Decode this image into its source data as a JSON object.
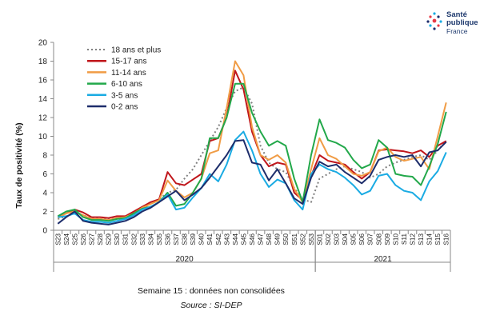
{
  "logo": {
    "line1": "Santé",
    "line2": "publique",
    "line3": "France"
  },
  "footnote": "Semaine 15 : données non consolidées",
  "source": "Source : SI-DEP",
  "chart_data": {
    "type": "line",
    "ylabel": "Taux de positivité  (%)",
    "ylim": [
      0,
      20
    ],
    "yticks": [
      0,
      2,
      4,
      6,
      8,
      10,
      12,
      14,
      16,
      18,
      20
    ],
    "grid": false,
    "legend_position": "top-left",
    "categories": [
      "S23",
      "S24",
      "S25",
      "S26",
      "S27",
      "S28",
      "S29",
      "S30",
      "S31",
      "S32",
      "S33",
      "S34",
      "S35",
      "S36",
      "S37",
      "S38",
      "S39",
      "S40",
      "S41",
      "S42",
      "S43",
      "S44",
      "S45",
      "S46",
      "S47",
      "S48",
      "S49",
      "S50",
      "S51",
      "S52",
      "S53",
      "S01",
      "S02",
      "S03",
      "S04",
      "S05",
      "S06",
      "S07",
      "S08",
      "S09",
      "S10",
      "S11",
      "S12",
      "S13",
      "S14",
      "S15",
      "S16"
    ],
    "year_groups": [
      {
        "label": "2020",
        "start": 0,
        "end": 30
      },
      {
        "label": "2021",
        "start": 31,
        "end": 46
      }
    ],
    "series": [
      {
        "name": "18 ans et plus",
        "color": "#808080",
        "dash": true,
        "values": [
          1.2,
          1.5,
          1.8,
          1.6,
          1.3,
          1.2,
          1.2,
          1.3,
          1.5,
          1.9,
          2.3,
          2.8,
          3.3,
          4.0,
          4.3,
          5.5,
          6.5,
          8.0,
          9.5,
          11.0,
          13.0,
          14.8,
          15.2,
          13.5,
          9.0,
          7.2,
          6.5,
          6.2,
          4.5,
          3.3,
          3.0,
          5.5,
          6.0,
          6.5,
          6.8,
          6.5,
          6.2,
          5.6,
          6.0,
          6.8,
          7.2,
          7.5,
          7.8,
          8.0,
          7.5,
          8.5,
          9.5
        ]
      },
      {
        "name": "15-17 ans",
        "color": "#c0161b",
        "dash": false,
        "values": [
          1.4,
          1.8,
          2.2,
          1.9,
          1.4,
          1.4,
          1.3,
          1.5,
          1.5,
          2.0,
          2.5,
          3.0,
          3.3,
          6.2,
          5.0,
          4.8,
          5.4,
          6.0,
          9.5,
          9.8,
          12.0,
          17.0,
          15.0,
          10.5,
          8.0,
          6.8,
          7.2,
          7.0,
          4.0,
          3.2,
          5.8,
          8.0,
          7.4,
          7.2,
          7.0,
          6.2,
          5.5,
          6.2,
          8.5,
          8.6,
          8.5,
          8.4,
          8.2,
          8.5,
          7.8,
          9.0,
          9.5
        ]
      },
      {
        "name": "11-14 ans",
        "color": "#f09c45",
        "dash": false,
        "values": [
          1.3,
          1.8,
          2.0,
          1.6,
          1.2,
          1.2,
          1.1,
          1.3,
          1.4,
          1.8,
          2.4,
          2.8,
          3.2,
          5.3,
          4.2,
          3.5,
          4.0,
          5.5,
          8.2,
          8.5,
          13.0,
          18.0,
          16.5,
          11.0,
          8.0,
          7.5,
          8.0,
          7.2,
          4.4,
          3.0,
          6.5,
          9.8,
          8.0,
          7.6,
          6.8,
          6.0,
          5.8,
          6.2,
          8.4,
          8.8,
          7.8,
          7.4,
          7.6,
          7.8,
          6.5,
          10.0,
          13.6
        ]
      },
      {
        "name": "6-10 ans",
        "color": "#22a84a",
        "dash": false,
        "values": [
          1.5,
          2.0,
          2.2,
          1.4,
          1.1,
          1.1,
          1.0,
          1.2,
          1.3,
          1.8,
          2.3,
          2.5,
          3.0,
          4.0,
          2.6,
          2.8,
          4.0,
          5.5,
          9.8,
          9.8,
          12.0,
          15.6,
          15.6,
          12.5,
          10.5,
          9.0,
          9.5,
          9.0,
          5.5,
          3.0,
          8.0,
          11.8,
          9.6,
          9.3,
          8.8,
          7.5,
          6.6,
          7.0,
          9.6,
          8.8,
          6.0,
          5.8,
          5.7,
          4.8,
          6.8,
          9.2,
          12.6
        ]
      },
      {
        "name": "3-5 ans",
        "color": "#1aabe3",
        "dash": false,
        "values": [
          1.4,
          1.5,
          1.8,
          1.1,
          0.9,
          0.9,
          0.8,
          1.0,
          1.2,
          1.6,
          2.2,
          2.5,
          3.0,
          3.8,
          2.2,
          2.4,
          3.5,
          4.5,
          6.0,
          5.2,
          7.0,
          9.6,
          10.5,
          8.5,
          6.0,
          4.6,
          5.4,
          5.0,
          3.2,
          2.2,
          6.0,
          7.0,
          6.5,
          6.2,
          5.6,
          4.8,
          3.8,
          4.2,
          5.8,
          6.0,
          4.8,
          4.2,
          4.0,
          3.2,
          5.2,
          6.3,
          8.3
        ]
      },
      {
        "name": "0-2 ans",
        "color": "#1d2d6b",
        "dash": false,
        "values": [
          0.7,
          1.4,
          2.0,
          1.0,
          0.8,
          0.7,
          0.6,
          0.8,
          1.0,
          1.4,
          2.0,
          2.4,
          3.0,
          3.6,
          4.2,
          3.2,
          3.8,
          4.5,
          5.6,
          6.8,
          8.0,
          9.5,
          9.6,
          7.2,
          7.0,
          5.3,
          6.5,
          5.0,
          3.4,
          2.8,
          5.6,
          7.3,
          6.8,
          7.0,
          6.2,
          5.6,
          5.0,
          5.8,
          7.5,
          7.8,
          8.0,
          7.8,
          8.0,
          6.8,
          8.3,
          8.5,
          9.4
        ]
      }
    ]
  }
}
